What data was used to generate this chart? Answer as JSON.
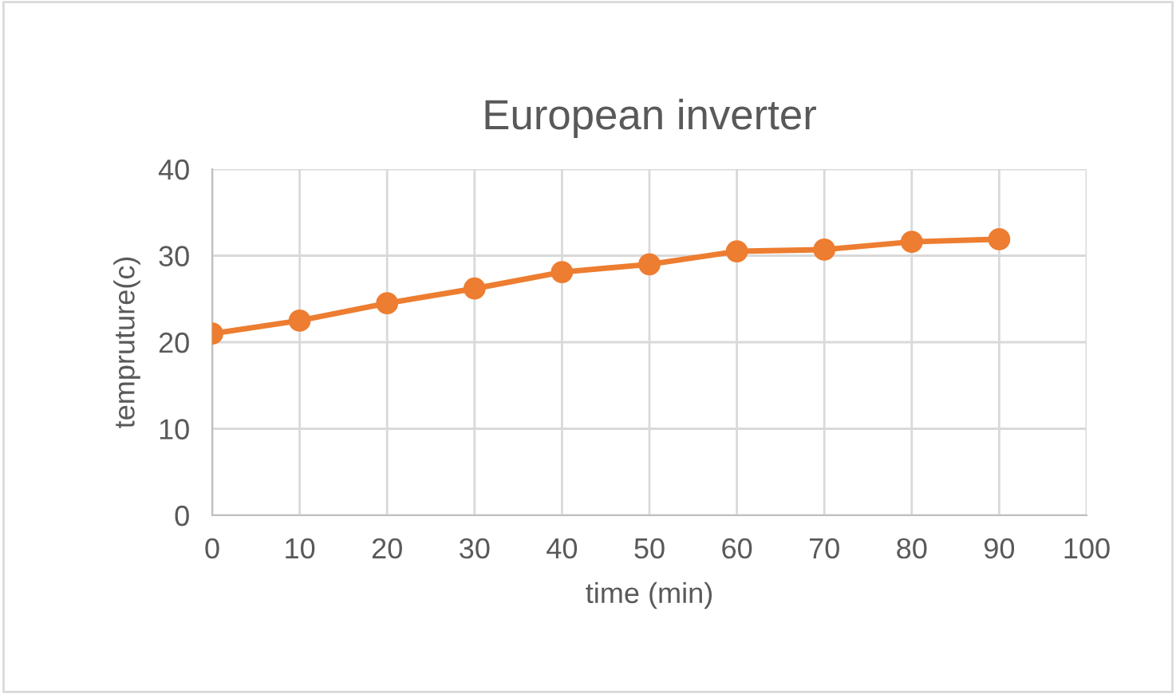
{
  "chart_data": {
    "type": "line",
    "title": "European inverter",
    "xlabel": "time (min)",
    "ylabel": "tempruture(c)",
    "x": [
      0,
      10,
      20,
      30,
      40,
      50,
      60,
      70,
      80,
      90
    ],
    "series": [
      {
        "color": "#ed7d31",
        "values": [
          21.0,
          22.5,
          24.5,
          26.2,
          28.1,
          29.0,
          30.5,
          30.7,
          31.6,
          31.9
        ]
      }
    ],
    "xlim": [
      0,
      100
    ],
    "xticks": [
      0,
      10,
      20,
      30,
      40,
      50,
      60,
      70,
      80,
      90,
      100
    ],
    "ylim": [
      0,
      40
    ],
    "yticks": [
      0,
      10,
      20,
      30,
      40
    ],
    "grid": true,
    "marker": "circle",
    "line_style": "solid"
  }
}
